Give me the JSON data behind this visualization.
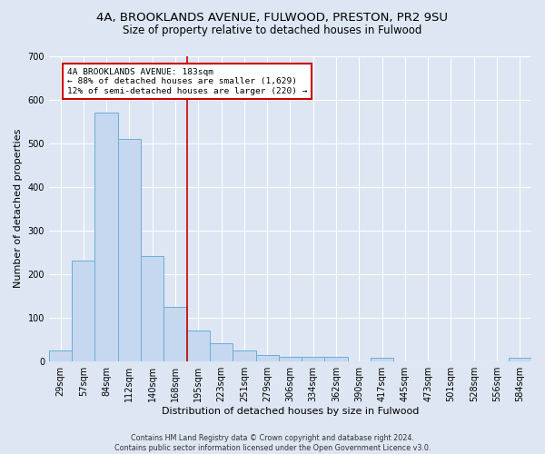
{
  "title1": "4A, BROOKLANDS AVENUE, FULWOOD, PRESTON, PR2 9SU",
  "title2": "Size of property relative to detached houses in Fulwood",
  "xlabel": "Distribution of detached houses by size in Fulwood",
  "ylabel": "Number of detached properties",
  "footnote": "Contains HM Land Registry data © Crown copyright and database right 2024.\nContains public sector information licensed under the Open Government Licence v3.0.",
  "categories": [
    "29sqm",
    "57sqm",
    "84sqm",
    "112sqm",
    "140sqm",
    "168sqm",
    "195sqm",
    "223sqm",
    "251sqm",
    "279sqm",
    "306sqm",
    "334sqm",
    "362sqm",
    "390sqm",
    "417sqm",
    "445sqm",
    "473sqm",
    "501sqm",
    "528sqm",
    "556sqm",
    "584sqm"
  ],
  "values": [
    25,
    230,
    570,
    510,
    240,
    125,
    70,
    40,
    25,
    15,
    10,
    10,
    10,
    0,
    8,
    0,
    0,
    0,
    0,
    0,
    7
  ],
  "bar_color": "#c5d8f0",
  "bar_edge_color": "#6aaed6",
  "vline_x_index": 6,
  "vline_color": "#cc0000",
  "annotation_text": "4A BROOKLANDS AVENUE: 183sqm\n← 88% of detached houses are smaller (1,629)\n12% of semi-detached houses are larger (220) →",
  "annotation_box_color": "#ffffff",
  "annotation_box_edge_color": "#cc0000",
  "ylim": [
    0,
    700
  ],
  "yticks": [
    0,
    100,
    200,
    300,
    400,
    500,
    600,
    700
  ],
  "background_color": "#dde6f2",
  "plot_background_color": "#dde6f2",
  "grid_color": "#ffffff",
  "title_fontsize": 9.5,
  "subtitle_fontsize": 8.5,
  "tick_fontsize": 7,
  "label_fontsize": 8,
  "footnote_fontsize": 5.8
}
